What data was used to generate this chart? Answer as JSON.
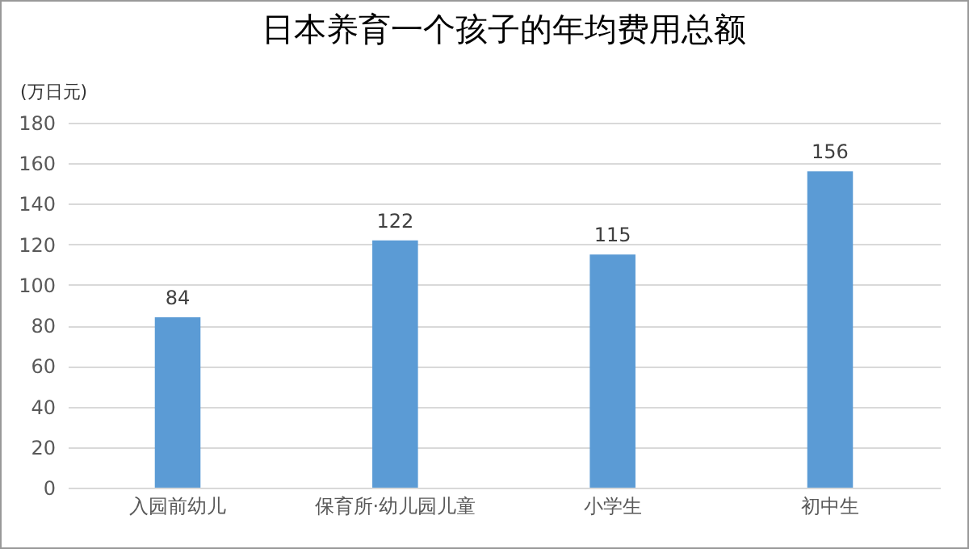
{
  "chart_data": {
    "type": "bar",
    "title": "日本养育一个孩子的年均费用总额",
    "ylabel": "(万日元)",
    "categories": [
      "入园前幼儿",
      "保育所·幼儿园儿童",
      "小学生",
      "初中生"
    ],
    "values": [
      84,
      122,
      115,
      156
    ],
    "color": "#5b9bd5",
    "ylim": [
      0,
      180
    ],
    "yticks": [
      0,
      20,
      40,
      60,
      80,
      100,
      120,
      140,
      160,
      180
    ],
    "grid": "y",
    "data_labels": true
  }
}
